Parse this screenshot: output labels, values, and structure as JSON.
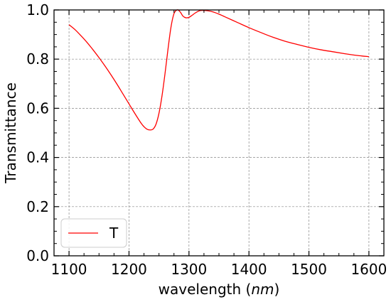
{
  "chart_data": {
    "type": "line",
    "xlabel_prefix": "wavelength (",
    "xlabel_unit": "nm",
    "xlabel_suffix": ")",
    "ylabel": "Transmittance",
    "xlim": [
      1075,
      1625
    ],
    "ylim": [
      0.0,
      1.0
    ],
    "xticks": [
      1100,
      1200,
      1300,
      1400,
      1500,
      1600
    ],
    "yticks": [
      0.0,
      0.2,
      0.4,
      0.6,
      0.8,
      1.0
    ],
    "x_minor_step": 25,
    "y_minor_step": 0.05,
    "grid": true,
    "legend_position": "lower-left",
    "series": [
      {
        "name": "T",
        "color": "#ff0000",
        "x": [
          1100,
          1110,
          1120,
          1130,
          1140,
          1150,
          1160,
          1170,
          1180,
          1190,
          1200,
          1210,
          1220,
          1225,
          1230,
          1235,
          1240,
          1245,
          1250,
          1255,
          1260,
          1265,
          1270,
          1275,
          1280,
          1283,
          1286,
          1290,
          1295,
          1300,
          1305,
          1310,
          1315,
          1320,
          1330,
          1340,
          1350,
          1360,
          1380,
          1400,
          1420,
          1440,
          1460,
          1480,
          1500,
          1520,
          1540,
          1560,
          1580,
          1600
        ],
        "y": [
          0.94,
          0.92,
          0.895,
          0.868,
          0.838,
          0.806,
          0.772,
          0.736,
          0.698,
          0.658,
          0.618,
          0.578,
          0.54,
          0.525,
          0.515,
          0.512,
          0.515,
          0.535,
          0.58,
          0.65,
          0.74,
          0.84,
          0.93,
          0.985,
          1.0,
          0.998,
          0.99,
          0.975,
          0.968,
          0.97,
          0.978,
          0.987,
          0.994,
          0.998,
          0.997,
          0.992,
          0.983,
          0.972,
          0.95,
          0.928,
          0.908,
          0.889,
          0.873,
          0.86,
          0.848,
          0.838,
          0.83,
          0.822,
          0.815,
          0.81
        ]
      }
    ]
  }
}
